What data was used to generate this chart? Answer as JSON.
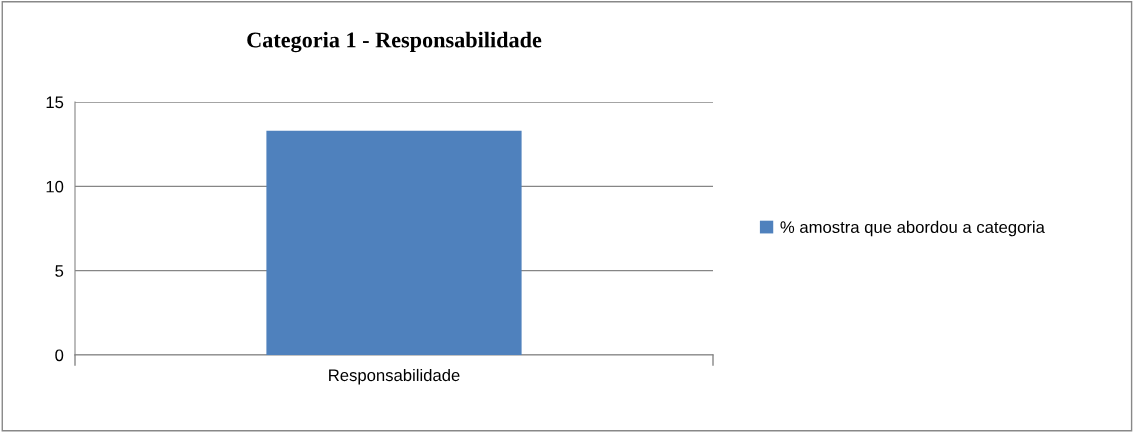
{
  "chart_data": {
    "type": "bar",
    "title": "Categoria 1 - Responsabilidade",
    "categories": [
      "Responsabilidade"
    ],
    "series": [
      {
        "name": "% amostra que abordou a categoria",
        "color": "#4f81bd",
        "values": [
          13.3
        ]
      }
    ],
    "ylim": [
      0,
      15
    ],
    "yticks": [
      0,
      5,
      10,
      15
    ],
    "grid": "y",
    "legend": "right"
  }
}
